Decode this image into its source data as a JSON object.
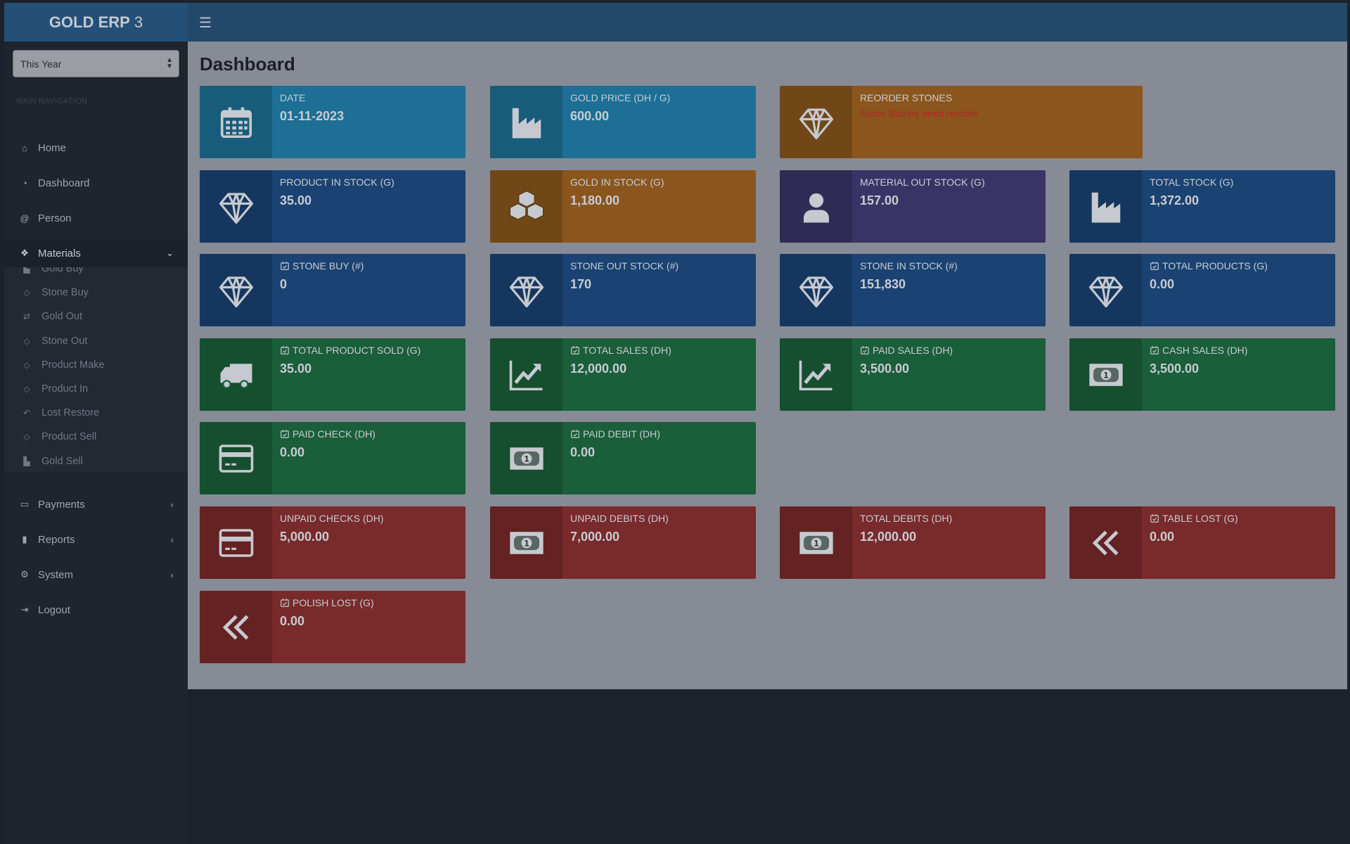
{
  "app": {
    "name": "GOLD ERP",
    "version": "3"
  },
  "period_select": {
    "value": "This Year"
  },
  "sidebar": {
    "heading": "MAIN NAVIGATION",
    "items": [
      {
        "label": "Home",
        "icon": "home-icon",
        "glyph": "⌂"
      },
      {
        "label": "Dashboard",
        "icon": "dashboard-icon",
        "glyph": "◔"
      },
      {
        "label": "Person",
        "icon": "at-icon",
        "glyph": "@"
      },
      {
        "label": "Materials",
        "icon": "cubes-icon",
        "glyph": "❖",
        "chevron": "⌄"
      },
      {
        "label": "Payments",
        "icon": "money-icon",
        "glyph": "▭",
        "chevron": "‹"
      },
      {
        "label": "Reports",
        "icon": "bookmark-icon",
        "glyph": "▮",
        "chevron": "‹"
      },
      {
        "label": "System",
        "icon": "gear-icon",
        "glyph": "⚙",
        "chevron": "‹"
      },
      {
        "label": "Logout",
        "icon": "sign-out-icon",
        "glyph": "⇥"
      }
    ],
    "materials_sub": [
      {
        "label": "Gold Buy",
        "icon": "factory-icon",
        "glyph": "▙"
      },
      {
        "label": "Stone Buy",
        "icon": "diamond-icon",
        "glyph": "◇"
      },
      {
        "label": "Gold Out",
        "icon": "exchange-icon",
        "glyph": "⇄"
      },
      {
        "label": "Stone Out",
        "icon": "diamond-icon",
        "glyph": "◇"
      },
      {
        "label": "Product Make",
        "icon": "diamond-icon",
        "glyph": "◇"
      },
      {
        "label": "Product In",
        "icon": "diamond-icon",
        "glyph": "◇"
      },
      {
        "label": "Lost Restore",
        "icon": "reply-icon",
        "glyph": "↶"
      },
      {
        "label": "Product Sell",
        "icon": "diamond-icon",
        "glyph": "◇"
      },
      {
        "label": "Gold Sell",
        "icon": "factory-icon",
        "glyph": "▙"
      }
    ]
  },
  "page": {
    "title": "Dashboard"
  },
  "colors": {
    "aqua": "#1d6f95",
    "blue": "#1a4272",
    "orange": "#8a561e",
    "purple": "#3a3466",
    "green": "#1b5e3a",
    "red": "#792a2b",
    "warning_text": "#b3231f"
  },
  "cards": [
    {
      "label": "Date",
      "value": "01-11-2023",
      "icon": "calendar",
      "color": "aqua",
      "row": 0,
      "col": 0
    },
    {
      "label": "Gold Price (DH / G)",
      "value": "600.00",
      "icon": "factory",
      "color": "aqua",
      "row": 0,
      "col": 1
    },
    {
      "label": "Reorder Stones",
      "warning": "Some Stones need reorder",
      "icon": "diamond",
      "color": "orange",
      "row": 0,
      "col": 2,
      "wide": true
    },
    {
      "label": "Product In Stock (G)",
      "value": "35.00",
      "icon": "diamond",
      "color": "blue",
      "row": 1,
      "col": 0
    },
    {
      "label": "Gold In Stock (G)",
      "value": "1,180.00",
      "icon": "cubes",
      "color": "orange",
      "row": 1,
      "col": 1
    },
    {
      "label": "Material Out Stock (G)",
      "value": "157.00",
      "icon": "user",
      "color": "purple",
      "row": 1,
      "col": 2
    },
    {
      "label": "Total Stock (G)",
      "value": "1,372.00",
      "icon": "factory",
      "color": "blue",
      "row": 1,
      "col": 3
    },
    {
      "label": "Stone Buy (#)",
      "value": "0",
      "icon": "diamond",
      "color": "blue",
      "row": 2,
      "col": 0,
      "dated": true
    },
    {
      "label": "Stone Out Stock (#)",
      "value": "170",
      "icon": "diamond",
      "color": "blue",
      "row": 2,
      "col": 1
    },
    {
      "label": "Stone In Stock (#)",
      "value": "151,830",
      "icon": "diamond",
      "color": "blue",
      "row": 2,
      "col": 2
    },
    {
      "label": "Total Products (G)",
      "value": "0.00",
      "icon": "diamond",
      "color": "blue",
      "row": 2,
      "col": 3,
      "dated": true
    },
    {
      "label": "Total Product Sold (G)",
      "value": "35.00",
      "icon": "truck",
      "color": "green",
      "row": 3,
      "col": 0,
      "dated": true
    },
    {
      "label": "Total Sales (DH)",
      "value": "12,000.00",
      "icon": "chart",
      "color": "green",
      "row": 3,
      "col": 1,
      "dated": true
    },
    {
      "label": "Paid Sales (DH)",
      "value": "3,500.00",
      "icon": "chart",
      "color": "green",
      "row": 3,
      "col": 2,
      "dated": true
    },
    {
      "label": "Cash Sales (DH)",
      "value": "3,500.00",
      "icon": "money",
      "color": "green",
      "row": 3,
      "col": 3,
      "dated": true
    },
    {
      "label": "Paid Check (DH)",
      "value": "0.00",
      "icon": "card",
      "color": "green",
      "row": 4,
      "col": 0,
      "dated": true
    },
    {
      "label": "Paid Debit (DH)",
      "value": "0.00",
      "icon": "money",
      "color": "green",
      "row": 4,
      "col": 1,
      "dated": true
    },
    {
      "label": "Unpaid Checks (DH)",
      "value": "5,000.00",
      "icon": "card",
      "color": "red",
      "row": 5,
      "col": 0
    },
    {
      "label": "Unpaid Debits (DH)",
      "value": "7,000.00",
      "icon": "money",
      "color": "red",
      "row": 5,
      "col": 1
    },
    {
      "label": "Total Debits (DH)",
      "value": "12,000.00",
      "icon": "money",
      "color": "red",
      "row": 5,
      "col": 2
    },
    {
      "label": "Table Lost (G)",
      "value": "0.00",
      "icon": "double-angle-left",
      "color": "red",
      "row": 5,
      "col": 3,
      "dated": true
    },
    {
      "label": "Polish Lost (G)",
      "value": "0.00",
      "icon": "double-angle-left",
      "color": "red",
      "row": 6,
      "col": 0,
      "dated": true
    }
  ]
}
